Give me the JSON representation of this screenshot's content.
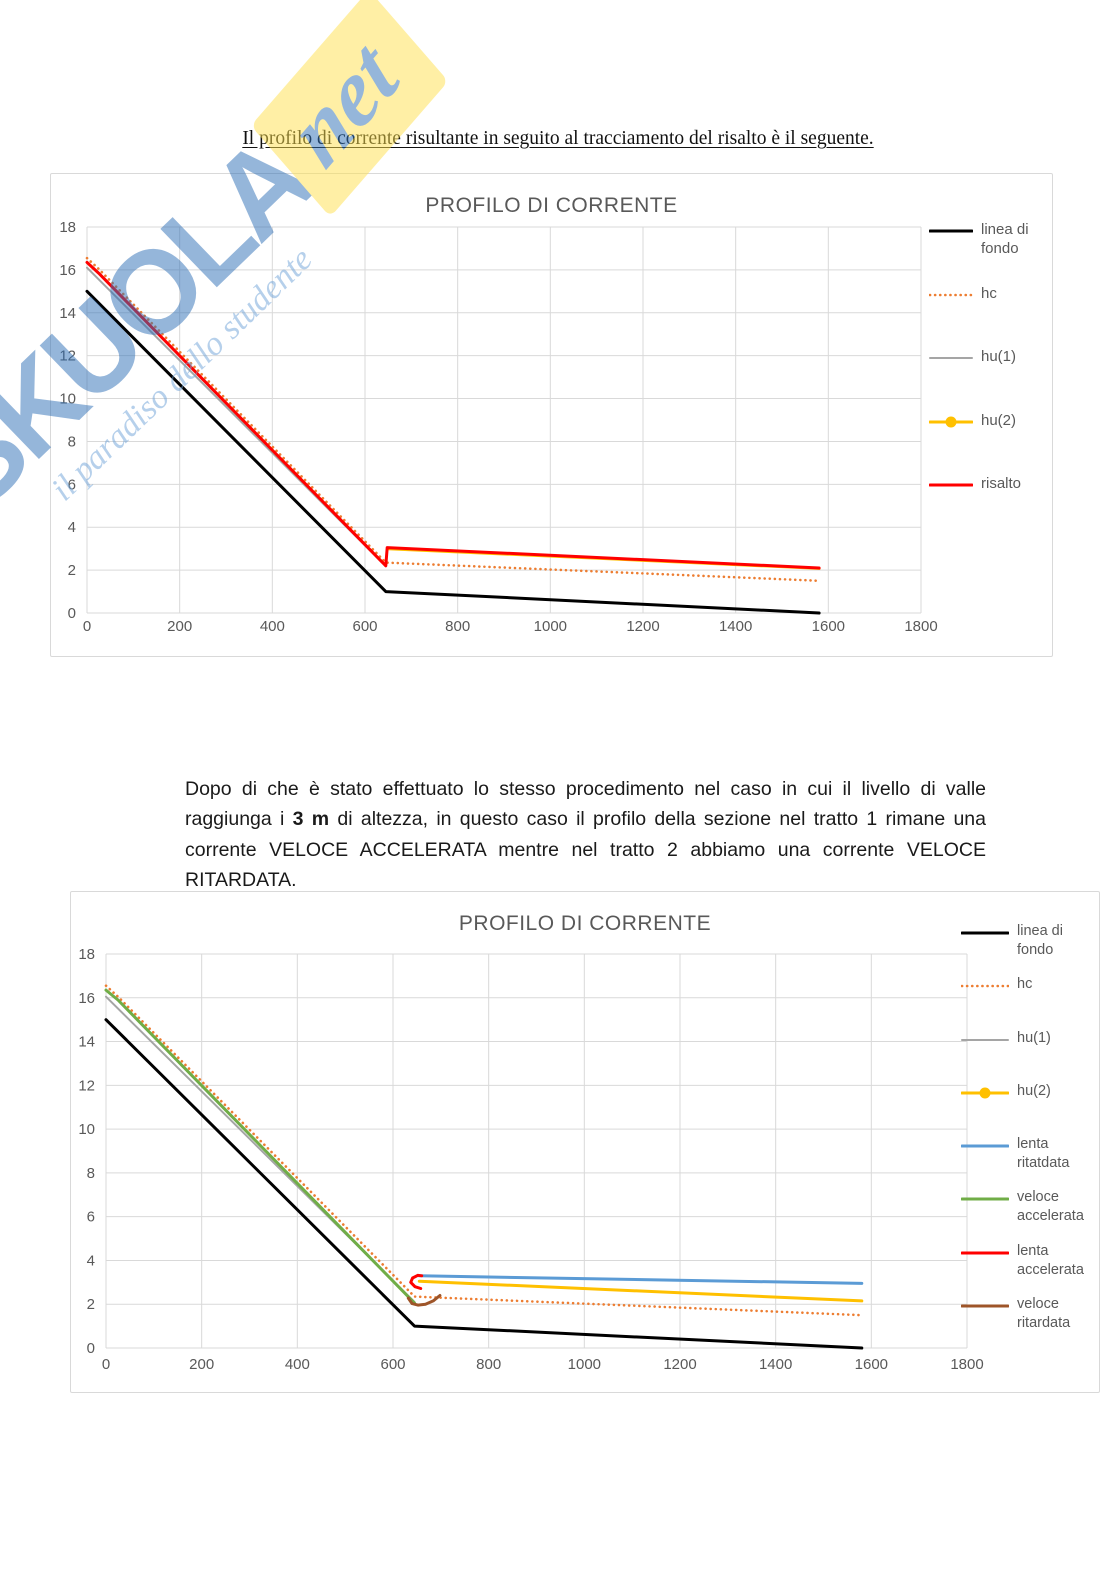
{
  "page": {
    "heading": "Il profilo di corrente risultante in seguito al tracciamento del risalto è il seguente.",
    "paragraph": {
      "before": "Dopo di che è stato effettuato lo stesso procedimento nel caso in cui il livello di valle raggiunga i ",
      "bold": "3 m",
      "after": " di altezza, in questo caso il profilo della sezione nel tratto 1 rimane una corrente VELOCE ACCELERATA mentre nel tratto 2 abbiamo una corrente VELOCE RITARDATA."
    }
  },
  "watermark": {
    "brand": "SKUOLA",
    "suffix": "net",
    "tagline": "il paradiso dello studente",
    "brand_color": "#2E6FB7",
    "band_color": "#FFE14D"
  },
  "chart_data": [
    {
      "type": "line",
      "title": "PROFILO DI CORRENTE",
      "xlabel": "",
      "ylabel": "",
      "xlim": [
        0,
        1800
      ],
      "ylim": [
        0,
        18
      ],
      "xticks": [
        0,
        200,
        400,
        600,
        800,
        1000,
        1200,
        1400,
        1600,
        1800
      ],
      "yticks": [
        0,
        2,
        4,
        6,
        8,
        10,
        12,
        14,
        16,
        18
      ],
      "grid": true,
      "grid_color": "#D9D9D9",
      "axis_text_color": "#595959",
      "legend_position": "right",
      "series": [
        {
          "name": "linea di fondo",
          "color": "#000000",
          "width": 3,
          "points": [
            [
              0,
              15
            ],
            [
              645,
              1
            ],
            [
              1580,
              0
            ]
          ]
        },
        {
          "name": "hc",
          "color": "#ED7D31",
          "width": 2.6,
          "dash": "dotted",
          "points": [
            [
              0,
              16.55
            ],
            [
              25,
              16.05
            ],
            [
              645,
              2.35
            ],
            [
              1580,
              1.5
            ]
          ]
        },
        {
          "name": "hu(1)",
          "color": "#A5A5A5",
          "width": 2,
          "points": [
            [
              0,
              16.1
            ],
            [
              645,
              2.18
            ]
          ]
        },
        {
          "name": "hu(2)",
          "color": "#FFC000",
          "width": 3,
          "marker": "circle",
          "points": [
            [
              650,
              3.0
            ],
            [
              1580,
              2.08
            ]
          ]
        },
        {
          "name": "risalto",
          "color": "#FF0000",
          "width": 3,
          "points": [
            [
              0,
              16.35
            ],
            [
              25,
              15.85
            ],
            [
              645,
              2.2
            ],
            [
              648,
              3.05
            ],
            [
              1580,
              2.1
            ]
          ]
        }
      ]
    },
    {
      "type": "line",
      "title": "PROFILO DI CORRENTE",
      "xlabel": "",
      "ylabel": "",
      "xlim": [
        0,
        1800
      ],
      "ylim": [
        0,
        18
      ],
      "xticks": [
        0,
        200,
        400,
        600,
        800,
        1000,
        1200,
        1400,
        1600,
        1800
      ],
      "yticks": [
        0,
        2,
        4,
        6,
        8,
        10,
        12,
        14,
        16,
        18
      ],
      "grid": true,
      "grid_color": "#D9D9D9",
      "axis_text_color": "#595959",
      "legend_position": "right",
      "series": [
        {
          "name": "linea di fondo",
          "color": "#000000",
          "width": 3,
          "points": [
            [
              0,
              15
            ],
            [
              645,
              1
            ],
            [
              1580,
              0
            ]
          ]
        },
        {
          "name": "hc",
          "color": "#ED7D31",
          "width": 2.6,
          "dash": "dotted",
          "points": [
            [
              0,
              16.55
            ],
            [
              25,
              16.05
            ],
            [
              645,
              2.35
            ],
            [
              1580,
              1.5
            ]
          ]
        },
        {
          "name": "hu(1)",
          "color": "#A5A5A5",
          "width": 2,
          "points": [
            [
              0,
              16.05
            ],
            [
              645,
              2.1
            ]
          ]
        },
        {
          "name": "hu(2)",
          "color": "#FFC000",
          "width": 3,
          "marker": "circle",
          "points": [
            [
              655,
              3.05
            ],
            [
              1580,
              2.15
            ]
          ]
        },
        {
          "name": "lenta ritatdata",
          "color": "#5B9BD5",
          "width": 3,
          "points": [
            [
              655,
              3.3
            ],
            [
              1580,
              2.95
            ]
          ]
        },
        {
          "name": "veloce accelerata",
          "color": "#70AD47",
          "width": 3,
          "points": [
            [
              0,
              16.35
            ],
            [
              25,
              15.9
            ],
            [
              645,
              2.05
            ]
          ]
        },
        {
          "name": "lenta accelerata",
          "color": "#FF0000",
          "width": 3,
          "points": [
            [
              658,
              2.72
            ],
            [
              646,
              2.8
            ],
            [
              637,
              3.0
            ],
            [
              641,
              3.2
            ],
            [
              652,
              3.32
            ],
            [
              660,
              3.3
            ]
          ]
        },
        {
          "name": "veloce ritardata",
          "color": "#9E5529",
          "width": 3,
          "points": [
            [
              632,
              2.28
            ],
            [
              640,
              2.03
            ],
            [
              652,
              1.96
            ],
            [
              668,
              2.0
            ],
            [
              684,
              2.15
            ],
            [
              698,
              2.4
            ]
          ]
        }
      ]
    }
  ]
}
